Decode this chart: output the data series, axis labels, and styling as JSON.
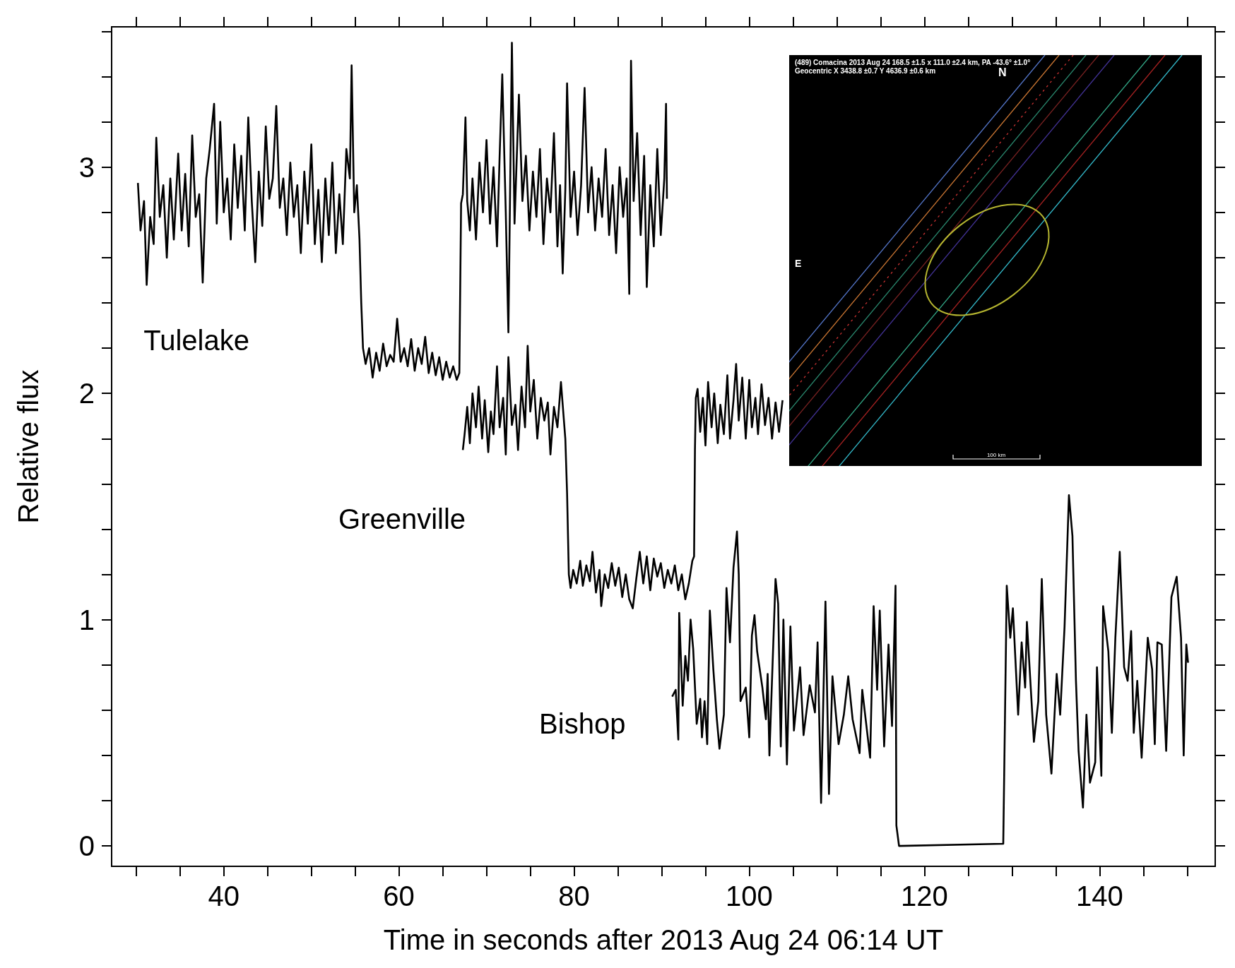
{
  "chart_data": {
    "type": "line",
    "xlabel": "Time in seconds after 2013 Aug 24 06:14 UT",
    "ylabel": "Relative flux",
    "xlim": [
      27.2,
      153.2
    ],
    "ylim": [
      -0.09,
      3.62
    ],
    "xticks": [
      {
        "value": 30,
        "label": null
      },
      {
        "value": 35,
        "label": null
      },
      40,
      {
        "value": 45,
        "label": null
      },
      {
        "value": 50,
        "label": null
      },
      {
        "value": 55,
        "label": null
      },
      60,
      {
        "value": 65,
        "label": null
      },
      {
        "value": 70,
        "label": null
      },
      {
        "value": 75,
        "label": null
      },
      80,
      {
        "value": 85,
        "label": null
      },
      {
        "value": 90,
        "label": null
      },
      {
        "value": 95,
        "label": null
      },
      100,
      {
        "value": 105,
        "label": null
      },
      {
        "value": 110,
        "label": null
      },
      {
        "value": 115,
        "label": null
      },
      120,
      {
        "value": 125,
        "label": null
      },
      {
        "value": 130,
        "label": null
      },
      {
        "value": 135,
        "label": null
      },
      140,
      {
        "value": 145,
        "label": null
      },
      {
        "value": 150,
        "label": null
      }
    ],
    "yticks": [
      0,
      {
        "value": 0.2,
        "label": null
      },
      {
        "value": 0.4,
        "label": null
      },
      {
        "value": 0.6,
        "label": null
      },
      {
        "value": 0.8,
        "label": null
      },
      1,
      {
        "value": 1.2,
        "label": null
      },
      {
        "value": 1.4,
        "label": null
      },
      {
        "value": 1.6,
        "label": null
      },
      {
        "value": 1.8,
        "label": null
      },
      2,
      {
        "value": 2.2,
        "label": null
      },
      {
        "value": 2.4,
        "label": null
      },
      {
        "value": 2.6,
        "label": null
      },
      {
        "value": 2.8,
        "label": null
      },
      3,
      {
        "value": 3.2,
        "label": null
      },
      {
        "value": 3.4,
        "label": null
      },
      {
        "value": 3.6,
        "label": null
      }
    ],
    "grid": false,
    "legend": false,
    "marker": "none",
    "line_style": "solid",
    "annotations": [
      "(489) Comacina 2013 Aug 24   168.5 ±1.5 x 111.0 ±2.4 km, PA -43.6° ±1.0°",
      "Geocentric  X 3438.8 ±0.7  Y 4636.9 ±0.6 km",
      "N",
      "E",
      "100 km"
    ],
    "series": [
      {
        "name": "Tulelake",
        "color": "#000000",
        "x": [
          30.2,
          30.5,
          30.9,
          31.2,
          31.6,
          32.0,
          32.3,
          32.7,
          33.1,
          33.5,
          33.9,
          34.3,
          34.8,
          35.2,
          35.6,
          36.0,
          36.4,
          36.8,
          37.2,
          37.6,
          38.0,
          38.4,
          38.9,
          39.2,
          39.6,
          40.0,
          40.4,
          40.8,
          41.2,
          41.6,
          42.0,
          42.4,
          42.8,
          43.2,
          43.6,
          44.0,
          44.4,
          44.8,
          45.2,
          45.6,
          46.0,
          46.4,
          46.8,
          47.2,
          47.6,
          48.0,
          48.4,
          48.8,
          49.2,
          49.6,
          50.0,
          50.4,
          50.8,
          51.2,
          51.6,
          52.0,
          52.4,
          52.8,
          53.2,
          53.6,
          54.0,
          54.4,
          54.6,
          54.9,
          55.2,
          55.5,
          55.7,
          55.9,
          56.2,
          56.6,
          57.0,
          57.4,
          57.8,
          58.2,
          58.6,
          59.0,
          59.4,
          59.8,
          60.2,
          60.6,
          61.0,
          61.4,
          61.8,
          62.2,
          62.6,
          63.0,
          63.4,
          63.8,
          64.2,
          64.6,
          65.0,
          65.4,
          65.8,
          66.2,
          66.6,
          66.9,
          67.1,
          67.3,
          67.6,
          67.8,
          68.1,
          68.4,
          68.8,
          69.2,
          69.6,
          70.0,
          70.4,
          70.8,
          71.2,
          71.5,
          71.8,
          72.2,
          72.5,
          72.9,
          73.2,
          73.7,
          74.1,
          74.5,
          74.9,
          75.3,
          75.7,
          76.1,
          76.5,
          76.9,
          77.3,
          77.7,
          78.1,
          78.4,
          78.7,
          79.0,
          79.2,
          79.6,
          80.0,
          80.4,
          80.8,
          81.2,
          81.6,
          82.0,
          82.4,
          82.8,
          83.2,
          83.6,
          84.0,
          84.4,
          84.8,
          85.2,
          85.6,
          86.0,
          86.3,
          86.5,
          86.8,
          87.2,
          87.6,
          88.0,
          88.3,
          88.7,
          89.1,
          89.5,
          89.9,
          90.3,
          90.5,
          90.6
        ],
        "values": [
          2.93,
          2.72,
          2.85,
          2.48,
          2.78,
          2.66,
          3.13,
          2.78,
          2.92,
          2.6,
          2.95,
          2.68,
          3.06,
          2.72,
          2.97,
          2.65,
          3.14,
          2.78,
          2.88,
          2.49,
          2.95,
          3.08,
          3.28,
          2.75,
          3.2,
          2.8,
          2.95,
          2.68,
          3.1,
          2.82,
          3.05,
          2.72,
          3.22,
          2.85,
          2.58,
          2.98,
          2.74,
          3.18,
          2.86,
          2.95,
          3.27,
          2.82,
          2.95,
          2.7,
          3.02,
          2.78,
          2.92,
          2.62,
          2.98,
          2.75,
          3.1,
          2.66,
          2.9,
          2.58,
          2.95,
          2.7,
          3.02,
          2.62,
          2.88,
          2.66,
          3.08,
          2.95,
          3.45,
          2.8,
          2.92,
          2.68,
          2.4,
          2.2,
          2.13,
          2.2,
          2.07,
          2.18,
          2.1,
          2.22,
          2.12,
          2.17,
          2.14,
          2.33,
          2.14,
          2.2,
          2.12,
          2.24,
          2.1,
          2.2,
          2.13,
          2.25,
          2.09,
          2.18,
          2.08,
          2.16,
          2.06,
          2.14,
          2.07,
          2.12,
          2.06,
          2.09,
          2.84,
          2.88,
          3.22,
          2.85,
          2.72,
          2.95,
          2.68,
          3.02,
          2.8,
          3.12,
          2.75,
          3.0,
          2.65,
          3.05,
          3.41,
          2.8,
          2.27,
          3.55,
          2.75,
          3.32,
          2.85,
          3.05,
          2.72,
          2.98,
          2.78,
          3.08,
          2.66,
          2.95,
          2.8,
          3.15,
          2.65,
          2.92,
          2.53,
          2.9,
          3.37,
          2.78,
          2.98,
          2.7,
          2.92,
          3.35,
          2.8,
          3.0,
          2.72,
          2.95,
          2.78,
          3.08,
          2.7,
          2.92,
          2.62,
          3.0,
          2.78,
          2.95,
          2.44,
          3.47,
          2.85,
          3.15,
          2.7,
          3.05,
          2.47,
          2.92,
          2.65,
          3.08,
          2.7,
          2.95,
          3.28,
          2.86
        ]
      },
      {
        "name": "Greenville",
        "color": "#000000",
        "x": [
          67.3,
          67.5,
          67.8,
          68.1,
          68.4,
          68.8,
          69.1,
          69.5,
          69.8,
          70.2,
          70.5,
          70.8,
          71.2,
          71.5,
          71.9,
          72.2,
          72.5,
          72.9,
          73.3,
          73.6,
          74.0,
          74.4,
          74.7,
          75.0,
          75.4,
          75.8,
          76.2,
          76.6,
          77.0,
          77.3,
          77.7,
          78.1,
          78.5,
          78.8,
          79.0,
          79.2,
          79.4,
          79.6,
          79.9,
          80.3,
          80.7,
          81.0,
          81.4,
          81.8,
          82.1,
          82.5,
          82.9,
          83.1,
          83.5,
          83.9,
          84.3,
          84.7,
          85.1,
          85.5,
          85.9,
          86.3,
          86.7,
          87.1,
          87.5,
          87.9,
          88.3,
          88.7,
          89.1,
          89.5,
          89.9,
          90.3,
          90.7,
          91.1,
          91.5,
          91.9,
          92.3,
          92.7,
          93.1,
          93.5,
          93.7,
          93.8,
          93.9,
          94.1,
          94.4,
          94.7,
          95.0,
          95.3,
          95.7,
          96.0,
          96.4,
          96.7,
          97.1,
          97.5,
          97.8,
          98.2,
          98.5,
          98.8,
          99.2,
          99.6,
          100.0,
          100.3,
          100.7,
          101.0,
          101.4,
          101.8,
          102.2,
          102.6,
          103.0,
          103.4,
          103.8
        ],
        "values": [
          1.75,
          1.82,
          1.94,
          1.78,
          2.0,
          1.85,
          2.03,
          1.8,
          1.97,
          1.74,
          1.92,
          1.82,
          2.12,
          1.85,
          1.98,
          1.73,
          2.16,
          1.86,
          1.95,
          1.75,
          2.03,
          1.85,
          2.21,
          1.92,
          2.06,
          1.8,
          1.98,
          1.88,
          1.96,
          1.73,
          1.94,
          1.85,
          2.05,
          1.9,
          1.8,
          1.56,
          1.2,
          1.14,
          1.22,
          1.16,
          1.26,
          1.15,
          1.24,
          1.17,
          1.3,
          1.12,
          1.22,
          1.06,
          1.2,
          1.14,
          1.25,
          1.15,
          1.23,
          1.1,
          1.2,
          1.09,
          1.05,
          1.18,
          1.3,
          1.16,
          1.28,
          1.13,
          1.27,
          1.19,
          1.25,
          1.14,
          1.22,
          1.16,
          1.24,
          1.13,
          1.2,
          1.09,
          1.16,
          1.26,
          1.28,
          1.75,
          1.98,
          2.02,
          1.83,
          1.98,
          1.77,
          2.05,
          1.85,
          2.0,
          1.78,
          1.95,
          1.82,
          2.08,
          1.8,
          1.97,
          2.13,
          1.88,
          2.07,
          1.8,
          2.06,
          1.85,
          1.98,
          1.82,
          2.04,
          1.86,
          1.98,
          1.8,
          1.96,
          1.83,
          1.97
        ]
      },
      {
        "name": "Bishop",
        "color": "#000000",
        "x": [
          91.2,
          91.6,
          91.9,
          92.0,
          92.4,
          92.7,
          93.0,
          93.3,
          93.6,
          94.0,
          94.4,
          94.6,
          94.9,
          95.2,
          95.5,
          95.9,
          96.3,
          96.6,
          97.1,
          97.4,
          97.8,
          98.2,
          98.6,
          98.8,
          99.0,
          99.6,
          100.0,
          100.3,
          100.6,
          100.9,
          101.5,
          101.9,
          102.1,
          102.3,
          103.0,
          103.3,
          103.6,
          103.9,
          104.3,
          104.7,
          105.1,
          105.8,
          106.2,
          106.9,
          107.5,
          107.8,
          108.2,
          108.7,
          109.1,
          109.5,
          110.2,
          110.8,
          111.3,
          111.8,
          112.6,
          112.9,
          113.8,
          114.2,
          114.6,
          114.9,
          115.4,
          115.9,
          116.3,
          116.7,
          116.8,
          117.1,
          129.0,
          129.4,
          129.8,
          130.1,
          130.7,
          131.1,
          131.5,
          131.7,
          132.5,
          133.0,
          133.4,
          133.9,
          134.5,
          135.1,
          135.5,
          136.0,
          136.5,
          136.9,
          137.3,
          137.6,
          138.1,
          138.5,
          138.9,
          139.5,
          139.7,
          140.2,
          140.4,
          141.0,
          141.4,
          141.8,
          142.3,
          142.8,
          143.2,
          143.6,
          143.9,
          144.3,
          144.8,
          145.5,
          146.0,
          146.3,
          146.6,
          147.1,
          147.6,
          148.2,
          148.8,
          149.3,
          149.6,
          149.9,
          150.1
        ],
        "values": [
          0.66,
          0.69,
          0.47,
          1.03,
          0.62,
          0.84,
          0.73,
          1.0,
          0.87,
          0.54,
          0.65,
          0.48,
          0.64,
          0.45,
          1.04,
          0.78,
          0.56,
          0.43,
          0.58,
          1.14,
          0.9,
          1.23,
          1.39,
          1.2,
          0.64,
          0.7,
          0.48,
          0.93,
          1.02,
          0.86,
          0.7,
          0.56,
          0.76,
          0.4,
          1.18,
          1.07,
          0.44,
          1.0,
          0.36,
          0.97,
          0.51,
          0.79,
          0.49,
          0.71,
          0.59,
          0.9,
          0.19,
          1.08,
          0.23,
          0.75,
          0.45,
          0.58,
          0.75,
          0.56,
          0.41,
          0.69,
          0.39,
          1.06,
          0.69,
          1.04,
          0.44,
          0.89,
          0.53,
          1.15,
          0.09,
          0.0,
          0.01,
          1.15,
          0.92,
          1.05,
          0.58,
          0.9,
          0.7,
          0.99,
          0.46,
          0.64,
          1.18,
          0.58,
          0.32,
          0.76,
          0.58,
          0.97,
          1.55,
          1.37,
          0.73,
          0.42,
          0.17,
          0.58,
          0.28,
          0.37,
          0.79,
          0.31,
          1.06,
          0.86,
          0.5,
          0.92,
          1.3,
          0.79,
          0.73,
          0.95,
          0.5,
          0.73,
          0.39,
          0.92,
          0.78,
          0.45,
          0.9,
          0.89,
          0.42,
          1.1,
          1.19,
          0.92,
          0.4,
          0.89,
          0.81
        ]
      }
    ]
  }
}
